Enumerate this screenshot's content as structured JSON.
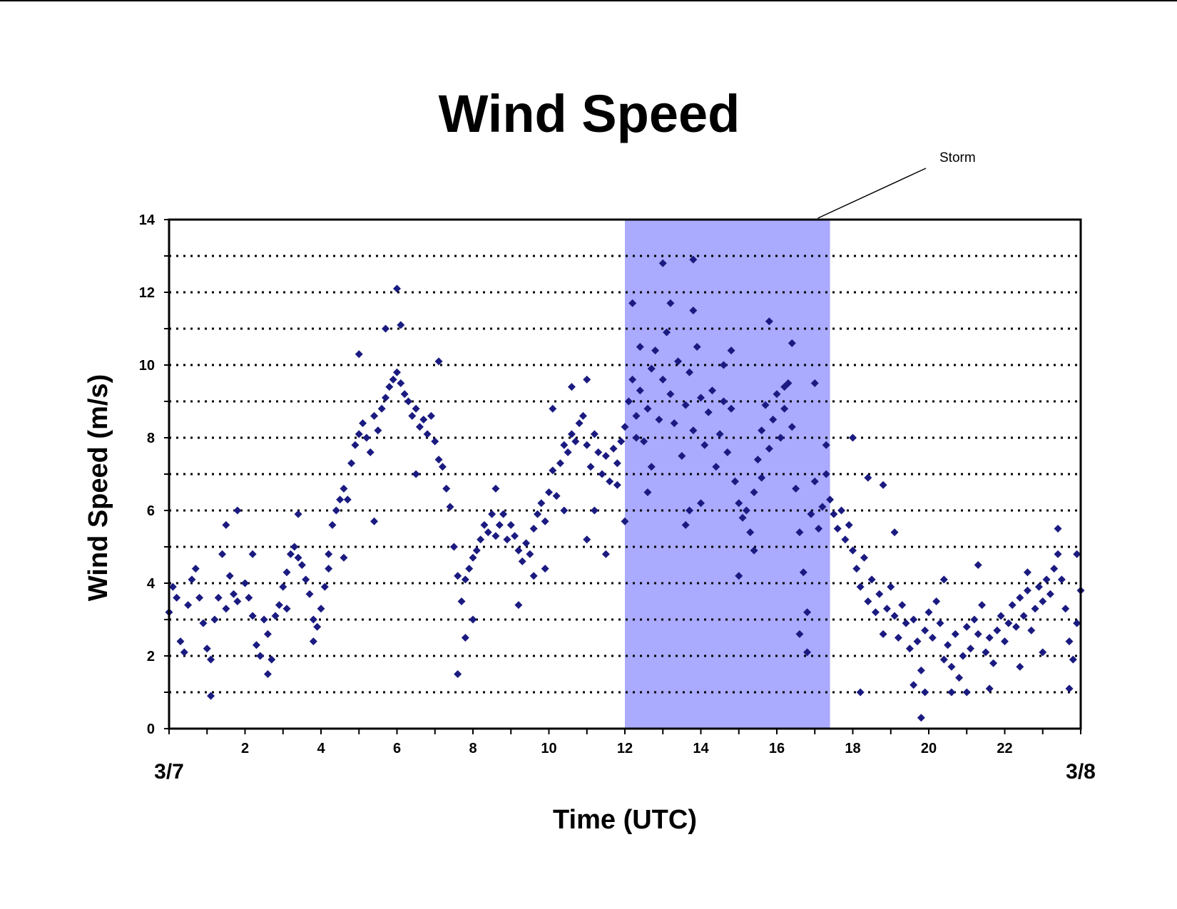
{
  "chart_data": {
    "type": "scatter",
    "title": "Wind Speed",
    "xlabel": "Time (UTC)",
    "ylabel": "Wind Speed (m/s)",
    "xlim": [
      0,
      24
    ],
    "ylim": [
      0,
      14
    ],
    "x_ticks": [
      2,
      4,
      6,
      8,
      10,
      12,
      14,
      16,
      18,
      20,
      22
    ],
    "y_ticks": [
      0,
      2,
      4,
      6,
      8,
      10,
      12,
      14
    ],
    "date_labels": {
      "start": "3/7",
      "end": "3/8"
    },
    "grid": "horizontal dotted at every 1 m/s",
    "legend": "none",
    "marker": "diamond",
    "colors": {
      "marker": "#1a1a80",
      "storm_band": "#aaaaff"
    },
    "storm": {
      "label": "Storm",
      "x_start": 12,
      "x_end": 17.4
    },
    "series": [
      {
        "points": [
          [
            0.0,
            3.2
          ],
          [
            0.2,
            3.6
          ],
          [
            0.3,
            2.4
          ],
          [
            0.5,
            3.4
          ],
          [
            0.6,
            4.1
          ],
          [
            0.8,
            3.6
          ],
          [
            0.9,
            2.9
          ],
          [
            1.0,
            2.2
          ],
          [
            1.1,
            1.9
          ],
          [
            1.2,
            3.0
          ],
          [
            1.3,
            3.6
          ],
          [
            1.5,
            3.3
          ],
          [
            1.6,
            4.2
          ],
          [
            1.7,
            3.7
          ],
          [
            1.8,
            3.5
          ],
          [
            2.0,
            4.0
          ],
          [
            2.1,
            3.6
          ],
          [
            2.2,
            3.1
          ],
          [
            2.3,
            2.3
          ],
          [
            2.4,
            2.0
          ],
          [
            2.5,
            3.0
          ],
          [
            2.6,
            2.6
          ],
          [
            2.7,
            1.9
          ],
          [
            2.8,
            3.1
          ],
          [
            2.9,
            3.4
          ],
          [
            3.0,
            3.9
          ],
          [
            3.1,
            4.3
          ],
          [
            3.2,
            4.8
          ],
          [
            3.3,
            5.0
          ],
          [
            3.4,
            4.7
          ],
          [
            3.5,
            4.5
          ],
          [
            3.6,
            4.1
          ],
          [
            3.7,
            3.7
          ],
          [
            3.8,
            3.0
          ],
          [
            3.9,
            2.8
          ],
          [
            4.0,
            3.3
          ],
          [
            4.1,
            3.9
          ],
          [
            4.2,
            4.8
          ],
          [
            4.3,
            5.6
          ],
          [
            4.4,
            6.0
          ],
          [
            4.5,
            6.3
          ],
          [
            4.6,
            6.6
          ],
          [
            4.7,
            6.3
          ],
          [
            4.8,
            7.3
          ],
          [
            4.9,
            7.8
          ],
          [
            5.0,
            8.1
          ],
          [
            5.1,
            8.4
          ],
          [
            5.2,
            8.0
          ],
          [
            5.3,
            7.6
          ],
          [
            5.4,
            8.6
          ],
          [
            5.5,
            8.2
          ],
          [
            5.6,
            8.8
          ],
          [
            5.7,
            9.1
          ],
          [
            5.8,
            9.4
          ],
          [
            5.9,
            9.6
          ],
          [
            6.0,
            9.8
          ],
          [
            6.1,
            9.5
          ],
          [
            6.2,
            9.2
          ],
          [
            6.3,
            9.0
          ],
          [
            6.4,
            8.6
          ],
          [
            6.5,
            8.8
          ],
          [
            6.6,
            8.3
          ],
          [
            6.7,
            8.5
          ],
          [
            6.8,
            8.1
          ],
          [
            6.9,
            8.6
          ],
          [
            7.0,
            7.9
          ],
          [
            7.1,
            7.4
          ],
          [
            7.2,
            7.2
          ],
          [
            7.3,
            6.6
          ],
          [
            7.4,
            6.1
          ],
          [
            7.5,
            5.0
          ],
          [
            7.6,
            4.2
          ],
          [
            7.7,
            3.5
          ],
          [
            7.8,
            4.1
          ],
          [
            7.9,
            4.4
          ],
          [
            8.0,
            4.7
          ],
          [
            8.1,
            4.9
          ],
          [
            8.2,
            5.2
          ],
          [
            8.3,
            5.6
          ],
          [
            8.4,
            5.4
          ],
          [
            8.5,
            5.9
          ],
          [
            8.6,
            5.3
          ],
          [
            8.7,
            5.6
          ],
          [
            8.8,
            5.9
          ],
          [
            8.9,
            5.2
          ],
          [
            9.0,
            5.6
          ],
          [
            9.1,
            5.3
          ],
          [
            9.2,
            4.9
          ],
          [
            9.3,
            4.6
          ],
          [
            9.4,
            5.1
          ],
          [
            9.5,
            4.8
          ],
          [
            9.6,
            5.5
          ],
          [
            9.7,
            5.9
          ],
          [
            9.8,
            6.2
          ],
          [
            9.9,
            5.7
          ],
          [
            10.0,
            6.5
          ],
          [
            10.1,
            7.1
          ],
          [
            10.2,
            6.4
          ],
          [
            10.3,
            7.3
          ],
          [
            10.4,
            7.8
          ],
          [
            10.5,
            7.6
          ],
          [
            10.6,
            8.1
          ],
          [
            10.7,
            7.9
          ],
          [
            10.8,
            8.4
          ],
          [
            10.9,
            8.6
          ],
          [
            11.0,
            7.8
          ],
          [
            11.1,
            7.2
          ],
          [
            11.2,
            8.1
          ],
          [
            11.3,
            7.6
          ],
          [
            11.4,
            7.0
          ],
          [
            11.5,
            7.5
          ],
          [
            11.6,
            6.8
          ],
          [
            11.7,
            7.7
          ],
          [
            11.8,
            7.3
          ],
          [
            11.9,
            7.9
          ],
          [
            12.0,
            8.3
          ],
          [
            12.1,
            9.0
          ],
          [
            12.2,
            9.6
          ],
          [
            12.3,
            8.6
          ],
          [
            12.4,
            9.3
          ],
          [
            12.5,
            7.9
          ],
          [
            12.6,
            8.8
          ],
          [
            12.7,
            9.9
          ],
          [
            12.8,
            10.4
          ],
          [
            12.9,
            8.5
          ],
          [
            13.0,
            9.6
          ],
          [
            13.1,
            10.9
          ],
          [
            13.2,
            9.2
          ],
          [
            13.3,
            8.4
          ],
          [
            13.4,
            10.1
          ],
          [
            13.5,
            7.5
          ],
          [
            13.6,
            8.9
          ],
          [
            13.7,
            9.8
          ],
          [
            13.8,
            8.2
          ],
          [
            13.9,
            10.5
          ],
          [
            14.0,
            9.1
          ],
          [
            14.1,
            7.8
          ],
          [
            14.2,
            8.7
          ],
          [
            14.3,
            9.3
          ],
          [
            14.4,
            7.2
          ],
          [
            14.5,
            8.1
          ],
          [
            14.6,
            9.0
          ],
          [
            14.7,
            7.6
          ],
          [
            14.8,
            8.8
          ],
          [
            14.9,
            6.8
          ],
          [
            15.0,
            6.2
          ],
          [
            15.1,
            5.8
          ],
          [
            15.2,
            6.0
          ],
          [
            15.3,
            5.4
          ],
          [
            15.4,
            6.5
          ],
          [
            15.5,
            7.4
          ],
          [
            15.6,
            8.2
          ],
          [
            15.7,
            8.9
          ],
          [
            15.8,
            7.7
          ],
          [
            15.9,
            8.5
          ],
          [
            16.0,
            9.2
          ],
          [
            16.1,
            8.0
          ],
          [
            16.2,
            8.8
          ],
          [
            16.3,
            9.5
          ],
          [
            16.4,
            8.3
          ],
          [
            16.5,
            6.6
          ],
          [
            16.6,
            5.4
          ],
          [
            16.7,
            4.3
          ],
          [
            16.8,
            3.2
          ],
          [
            16.9,
            5.9
          ],
          [
            17.0,
            6.8
          ],
          [
            17.1,
            5.5
          ],
          [
            17.2,
            6.1
          ],
          [
            17.3,
            7.0
          ],
          [
            17.4,
            6.3
          ],
          [
            17.5,
            5.9
          ],
          [
            17.6,
            5.5
          ],
          [
            17.7,
            6.0
          ],
          [
            17.8,
            5.2
          ],
          [
            17.9,
            5.6
          ],
          [
            18.0,
            4.9
          ],
          [
            18.1,
            4.4
          ],
          [
            18.2,
            3.9
          ],
          [
            18.3,
            4.7
          ],
          [
            18.4,
            3.5
          ],
          [
            18.5,
            4.1
          ],
          [
            18.6,
            3.2
          ],
          [
            18.7,
            3.7
          ],
          [
            18.8,
            2.6
          ],
          [
            18.9,
            3.3
          ],
          [
            19.0,
            3.9
          ],
          [
            19.1,
            3.1
          ],
          [
            19.2,
            2.5
          ],
          [
            19.3,
            3.4
          ],
          [
            19.4,
            2.9
          ],
          [
            19.5,
            2.2
          ],
          [
            19.6,
            3.0
          ],
          [
            19.7,
            2.4
          ],
          [
            19.8,
            1.6
          ],
          [
            19.9,
            2.7
          ],
          [
            20.0,
            3.2
          ],
          [
            20.1,
            2.5
          ],
          [
            20.2,
            3.5
          ],
          [
            20.3,
            2.9
          ],
          [
            20.4,
            1.9
          ],
          [
            20.5,
            2.3
          ],
          [
            20.6,
            1.7
          ],
          [
            20.7,
            2.6
          ],
          [
            20.8,
            1.4
          ],
          [
            20.9,
            2.0
          ],
          [
            21.0,
            2.8
          ],
          [
            21.1,
            2.2
          ],
          [
            21.2,
            3.0
          ],
          [
            21.3,
            2.6
          ],
          [
            21.4,
            3.4
          ],
          [
            21.5,
            2.1
          ],
          [
            21.6,
            2.5
          ],
          [
            21.7,
            1.8
          ],
          [
            21.8,
            2.7
          ],
          [
            21.9,
            3.1
          ],
          [
            22.0,
            2.4
          ],
          [
            22.1,
            2.9
          ],
          [
            22.2,
            3.4
          ],
          [
            22.3,
            2.8
          ],
          [
            22.4,
            3.6
          ],
          [
            22.5,
            3.1
          ],
          [
            22.6,
            3.8
          ],
          [
            22.7,
            2.7
          ],
          [
            22.8,
            3.3
          ],
          [
            22.9,
            3.9
          ],
          [
            23.0,
            3.5
          ],
          [
            23.1,
            4.1
          ],
          [
            23.2,
            3.7
          ],
          [
            23.3,
            4.4
          ],
          [
            23.4,
            4.8
          ],
          [
            23.5,
            4.1
          ],
          [
            23.6,
            3.3
          ],
          [
            23.7,
            2.4
          ],
          [
            23.8,
            1.9
          ],
          [
            23.9,
            2.9
          ],
          [
            24.0,
            3.8
          ],
          [
            0.1,
            3.9
          ],
          [
            0.4,
            2.1
          ],
          [
            0.7,
            4.4
          ],
          [
            1.1,
            0.9
          ],
          [
            1.4,
            4.8
          ],
          [
            1.5,
            5.6
          ],
          [
            1.8,
            6.0
          ],
          [
            2.2,
            4.8
          ],
          [
            2.6,
            1.5
          ],
          [
            3.1,
            3.3
          ],
          [
            3.4,
            5.9
          ],
          [
            3.8,
            2.4
          ],
          [
            4.2,
            4.4
          ],
          [
            4.6,
            4.7
          ],
          [
            5.0,
            10.3
          ],
          [
            5.4,
            5.7
          ],
          [
            5.7,
            11.0
          ],
          [
            6.0,
            12.1
          ],
          [
            6.1,
            11.1
          ],
          [
            6.5,
            7.0
          ],
          [
            7.1,
            10.1
          ],
          [
            7.6,
            1.5
          ],
          [
            7.8,
            2.5
          ],
          [
            8.0,
            3.0
          ],
          [
            8.6,
            6.6
          ],
          [
            9.2,
            3.4
          ],
          [
            9.6,
            4.2
          ],
          [
            9.9,
            4.4
          ],
          [
            10.1,
            8.8
          ],
          [
            10.6,
            9.4
          ],
          [
            11.0,
            9.6
          ],
          [
            11.2,
            6.0
          ],
          [
            11.5,
            4.8
          ],
          [
            11.8,
            6.7
          ],
          [
            12.0,
            5.7
          ],
          [
            12.2,
            11.7
          ],
          [
            12.3,
            8.0
          ],
          [
            12.6,
            6.5
          ],
          [
            13.0,
            12.8
          ],
          [
            13.2,
            11.7
          ],
          [
            13.6,
            5.6
          ],
          [
            13.8,
            12.9
          ],
          [
            13.7,
            6.0
          ],
          [
            13.8,
            11.5
          ],
          [
            14.6,
            10.0
          ],
          [
            14.8,
            10.4
          ],
          [
            15.0,
            4.2
          ],
          [
            15.4,
            4.9
          ],
          [
            15.8,
            11.2
          ],
          [
            16.4,
            10.6
          ],
          [
            16.6,
            2.6
          ],
          [
            16.8,
            2.1
          ],
          [
            17.0,
            9.5
          ],
          [
            17.3,
            7.8
          ],
          [
            18.0,
            8.0
          ],
          [
            18.2,
            1.0
          ],
          [
            18.4,
            6.9
          ],
          [
            18.8,
            6.7
          ],
          [
            19.1,
            5.4
          ],
          [
            19.6,
            1.2
          ],
          [
            19.8,
            0.3
          ],
          [
            19.9,
            1.0
          ],
          [
            20.4,
            4.1
          ],
          [
            20.6,
            1.0
          ],
          [
            21.0,
            1.0
          ],
          [
            21.3,
            4.5
          ],
          [
            21.6,
            1.1
          ],
          [
            22.4,
            1.7
          ],
          [
            22.6,
            4.3
          ],
          [
            23.0,
            2.1
          ],
          [
            23.4,
            5.5
          ],
          [
            23.7,
            1.1
          ],
          [
            23.9,
            4.8
          ],
          [
            16.2,
            9.4
          ],
          [
            15.6,
            6.9
          ],
          [
            14.0,
            6.2
          ],
          [
            12.7,
            7.2
          ],
          [
            12.4,
            10.5
          ],
          [
            11.0,
            5.2
          ],
          [
            10.4,
            6.0
          ]
        ]
      }
    ]
  }
}
